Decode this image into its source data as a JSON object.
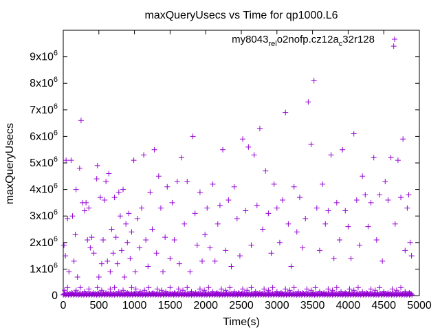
{
  "chart_data": {
    "type": "scatter",
    "title": "maxQueryUsecs vs Time for qp1000.L6",
    "xlabel": "Time(s)",
    "ylabel": "maxQueryUsecs",
    "xlim": [
      0,
      5000
    ],
    "ylim": [
      0,
      10000000
    ],
    "x_ticks": [
      0,
      500,
      1000,
      1500,
      2000,
      2500,
      3000,
      3500,
      4000,
      4500,
      5000
    ],
    "y_ticks": [
      {
        "value": 0,
        "base": "0",
        "exp": ""
      },
      {
        "value": 1000000,
        "base": "1x10",
        "exp": "6"
      },
      {
        "value": 2000000,
        "base": "2x10",
        "exp": "6"
      },
      {
        "value": 3000000,
        "base": "3x10",
        "exp": "6"
      },
      {
        "value": 4000000,
        "base": "4x10",
        "exp": "6"
      },
      {
        "value": 5000000,
        "base": "5x10",
        "exp": "6"
      },
      {
        "value": 6000000,
        "base": "6x10",
        "exp": "6"
      },
      {
        "value": 7000000,
        "base": "7x10",
        "exp": "6"
      },
      {
        "value": 8000000,
        "base": "8x10",
        "exp": "6"
      },
      {
        "value": 9000000,
        "base": "9x10",
        "exp": "6"
      }
    ],
    "legend_position": "top-right",
    "series": [
      {
        "name": "my8043_rel_o2nofp.cz12a_c32r128",
        "name_parts": [
          {
            "text": "my8043",
            "sub": false
          },
          {
            "text": "rel",
            "sub": true
          },
          {
            "text": "o",
            "sub": false
          },
          {
            "text": "2nofp.cz12a",
            "sub": false
          },
          {
            "text": "c",
            "sub": true
          },
          {
            "text": "32r128",
            "sub": false
          }
        ],
        "color": "#9400d3",
        "marker": "plus",
        "points": [
          [
            10,
            1900000
          ],
          [
            30,
            1500000
          ],
          [
            40,
            5100000
          ],
          [
            60,
            2900000
          ],
          [
            80,
            900000
          ],
          [
            110,
            5100000
          ],
          [
            130,
            3000000
          ],
          [
            150,
            1300000
          ],
          [
            170,
            2300000
          ],
          [
            180,
            4000000
          ],
          [
            200,
            700000
          ],
          [
            230,
            4800000
          ],
          [
            250,
            6600000
          ],
          [
            270,
            3500000
          ],
          [
            300,
            3200000
          ],
          [
            320,
            3500000
          ],
          [
            340,
            2100000
          ],
          [
            360,
            3300000
          ],
          [
            380,
            1800000
          ],
          [
            400,
            2200000
          ],
          [
            430,
            1600000
          ],
          [
            470,
            4400000
          ],
          [
            480,
            4900000
          ],
          [
            500,
            700000
          ],
          [
            520,
            3700000
          ],
          [
            540,
            1200000
          ],
          [
            560,
            2100000
          ],
          [
            580,
            3600000
          ],
          [
            600,
            4300000
          ],
          [
            620,
            1300000
          ],
          [
            640,
            4600000
          ],
          [
            660,
            900000
          ],
          [
            680,
            2500000
          ],
          [
            700,
            1600000
          ],
          [
            720,
            3700000
          ],
          [
            740,
            2200000
          ],
          [
            760,
            1200000
          ],
          [
            780,
            3900000
          ],
          [
            800,
            3000000
          ],
          [
            820,
            1700000
          ],
          [
            840,
            4000000
          ],
          [
            860,
            700000
          ],
          [
            880,
            2700000
          ],
          [
            900,
            2000000
          ],
          [
            920,
            3100000
          ],
          [
            940,
            1400000
          ],
          [
            960,
            2400000
          ],
          [
            990,
            5100000
          ],
          [
            1010,
            900000
          ],
          [
            1040,
            2900000
          ],
          [
            1070,
            1800000
          ],
          [
            1100,
            3300000
          ],
          [
            1130,
            5300000
          ],
          [
            1160,
            2100000
          ],
          [
            1190,
            1100000
          ],
          [
            1220,
            3900000
          ],
          [
            1250,
            2500000
          ],
          [
            1280,
            5500000
          ],
          [
            1310,
            1600000
          ],
          [
            1340,
            4500000
          ],
          [
            1370,
            3300000
          ],
          [
            1400,
            900000
          ],
          [
            1430,
            2200000
          ],
          [
            1460,
            4100000
          ],
          [
            1500,
            1400000
          ],
          [
            1530,
            3500000
          ],
          [
            1560,
            2100000
          ],
          [
            1600,
            4300000
          ],
          [
            1630,
            1200000
          ],
          [
            1660,
            5200000
          ],
          [
            1700,
            2700000
          ],
          [
            1740,
            4300000
          ],
          [
            1780,
            900000
          ],
          [
            1820,
            6000000
          ],
          [
            1850,
            3100000
          ],
          [
            1880,
            1900000
          ],
          [
            1920,
            3900000
          ],
          [
            1950,
            1300000
          ],
          [
            1990,
            2300000
          ],
          [
            2020,
            3300000
          ],
          [
            2060,
            1800000
          ],
          [
            2100,
            4200000
          ],
          [
            2130,
            1300000
          ],
          [
            2170,
            2700000
          ],
          [
            2200,
            3400000
          ],
          [
            2240,
            5500000
          ],
          [
            2280,
            1700000
          ],
          [
            2320,
            3600000
          ],
          [
            2360,
            1100000
          ],
          [
            2400,
            4100000
          ],
          [
            2440,
            2900000
          ],
          [
            2480,
            1500000
          ],
          [
            2520,
            5900000
          ],
          [
            2560,
            3200000
          ],
          [
            2600,
            5600000
          ],
          [
            2640,
            1900000
          ],
          [
            2680,
            5300000
          ],
          [
            2720,
            3400000
          ],
          [
            2760,
            6300000
          ],
          [
            2800,
            2500000
          ],
          [
            2840,
            4700000
          ],
          [
            2880,
            3100000
          ],
          [
            2920,
            1600000
          ],
          [
            2960,
            4200000
          ],
          [
            3000,
            3300000
          ],
          [
            3040,
            2000000
          ],
          [
            3080,
            3600000
          ],
          [
            3120,
            6900000
          ],
          [
            3160,
            2700000
          ],
          [
            3200,
            1100000
          ],
          [
            3240,
            4100000
          ],
          [
            3280,
            2400000
          ],
          [
            3320,
            3700000
          ],
          [
            3360,
            1800000
          ],
          [
            3400,
            2900000
          ],
          [
            3440,
            7300000
          ],
          [
            3480,
            5700000
          ],
          [
            3520,
            8100000
          ],
          [
            3560,
            3300000
          ],
          [
            3600,
            1700000
          ],
          [
            3640,
            4200000
          ],
          [
            3680,
            2700000
          ],
          [
            3720,
            3200000
          ],
          [
            3760,
            5300000
          ],
          [
            3800,
            1400000
          ],
          [
            3840,
            3500000
          ],
          [
            3880,
            2100000
          ],
          [
            3920,
            5500000
          ],
          [
            3960,
            3200000
          ],
          [
            4000,
            2600000
          ],
          [
            4040,
            1400000
          ],
          [
            4080,
            6100000
          ],
          [
            4120,
            3600000
          ],
          [
            4160,
            1900000
          ],
          [
            4200,
            4500000
          ],
          [
            4240,
            3800000
          ],
          [
            4280,
            2600000
          ],
          [
            4320,
            3500000
          ],
          [
            4360,
            5200000
          ],
          [
            4400,
            2100000
          ],
          [
            4440,
            3800000
          ],
          [
            4480,
            1300000
          ],
          [
            4520,
            4300000
          ],
          [
            4560,
            3600000
          ],
          [
            4600,
            5200000
          ],
          [
            4640,
            9400000
          ],
          [
            4660,
            2700000
          ],
          [
            4700,
            5100000
          ],
          [
            4740,
            3700000
          ],
          [
            4770,
            5900000
          ],
          [
            4800,
            1700000
          ],
          [
            4830,
            3300000
          ],
          [
            4850,
            3800000
          ],
          [
            4870,
            2000000
          ],
          [
            4890,
            1500000
          ],
          [
            20,
            200000
          ],
          [
            60,
            300000
          ],
          [
            120,
            100000
          ],
          [
            180,
            200000
          ],
          [
            240,
            300000
          ],
          [
            300,
            150000
          ],
          [
            360,
            250000
          ],
          [
            420,
            100000
          ],
          [
            480,
            300000
          ],
          [
            540,
            200000
          ],
          [
            600,
            100000
          ],
          [
            660,
            250000
          ],
          [
            720,
            300000
          ],
          [
            780,
            150000
          ],
          [
            840,
            200000
          ],
          [
            900,
            100000
          ],
          [
            960,
            300000
          ],
          [
            1020,
            250000
          ],
          [
            1080,
            150000
          ],
          [
            1140,
            200000
          ],
          [
            1200,
            300000
          ],
          [
            1260,
            100000
          ],
          [
            1320,
            250000
          ],
          [
            1380,
            200000
          ],
          [
            1440,
            150000
          ],
          [
            1500,
            300000
          ],
          [
            1560,
            100000
          ],
          [
            1620,
            250000
          ],
          [
            1680,
            200000
          ],
          [
            1740,
            300000
          ],
          [
            1800,
            150000
          ],
          [
            1860,
            100000
          ],
          [
            1920,
            250000
          ],
          [
            1980,
            200000
          ],
          [
            2040,
            300000
          ],
          [
            2100,
            150000
          ],
          [
            2160,
            100000
          ],
          [
            2220,
            250000
          ],
          [
            2280,
            200000
          ],
          [
            2340,
            300000
          ],
          [
            2400,
            150000
          ],
          [
            2460,
            100000
          ],
          [
            2520,
            250000
          ],
          [
            2580,
            200000
          ],
          [
            2640,
            300000
          ],
          [
            2700,
            150000
          ],
          [
            2760,
            100000
          ],
          [
            2820,
            250000
          ],
          [
            2880,
            200000
          ],
          [
            2940,
            300000
          ],
          [
            3000,
            150000
          ],
          [
            3060,
            100000
          ],
          [
            3120,
            250000
          ],
          [
            3180,
            200000
          ],
          [
            3240,
            300000
          ],
          [
            3300,
            150000
          ],
          [
            3360,
            100000
          ],
          [
            3420,
            250000
          ],
          [
            3480,
            200000
          ],
          [
            3540,
            300000
          ],
          [
            3600,
            150000
          ],
          [
            3660,
            100000
          ],
          [
            3720,
            250000
          ],
          [
            3780,
            200000
          ],
          [
            3840,
            300000
          ],
          [
            3900,
            150000
          ],
          [
            3960,
            100000
          ],
          [
            4020,
            250000
          ],
          [
            4080,
            200000
          ],
          [
            4140,
            300000
          ],
          [
            4200,
            150000
          ],
          [
            4260,
            100000
          ],
          [
            4320,
            250000
          ],
          [
            4380,
            200000
          ],
          [
            4440,
            300000
          ],
          [
            4500,
            150000
          ],
          [
            4560,
            100000
          ],
          [
            4620,
            250000
          ],
          [
            4680,
            200000
          ],
          [
            4740,
            300000
          ],
          [
            4800,
            150000
          ],
          [
            4860,
            100000
          ]
        ]
      }
    ]
  }
}
